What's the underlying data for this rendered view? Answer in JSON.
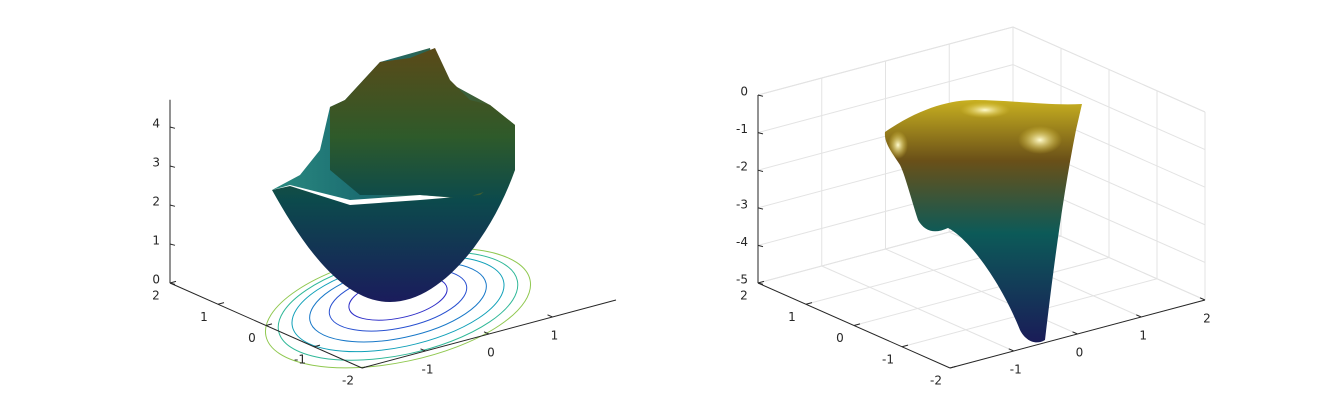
{
  "chart_data": [
    {
      "type": "surface",
      "grid": false,
      "xlim": [
        -2,
        2
      ],
      "ylim": [
        -2,
        2
      ],
      "zlim": [
        0,
        4.7
      ],
      "xticks": [
        -1,
        0,
        1
      ],
      "yticks": [
        -2,
        -1,
        0,
        1,
        2
      ],
      "zticks": [
        0,
        1,
        2,
        3,
        4
      ]
    },
    {
      "type": "surface",
      "grid": true,
      "xlim": [
        -2,
        2
      ],
      "ylim": [
        -2,
        2
      ],
      "zlim": [
        -5,
        0
      ],
      "xticks": [
        -1,
        0,
        1,
        2
      ],
      "yticks": [
        -2,
        -1,
        0,
        1,
        2
      ],
      "zticks": [
        -5,
        -4,
        -3,
        -2,
        -1,
        0
      ]
    }
  ]
}
